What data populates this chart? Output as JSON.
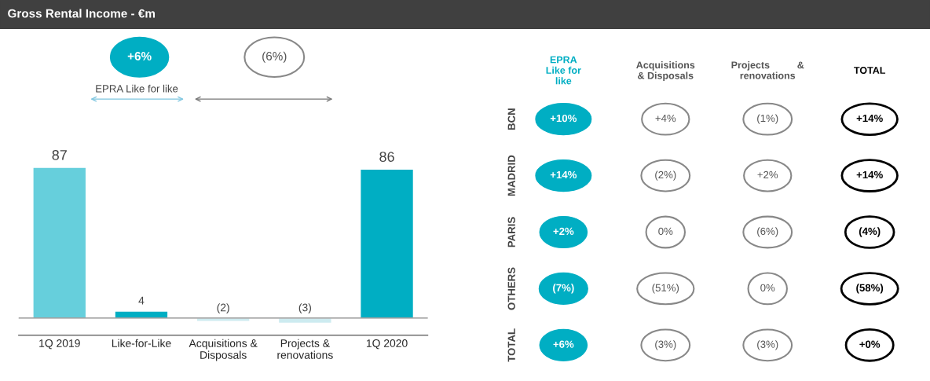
{
  "chart_data": [
    {
      "type": "bar",
      "title": "Gross Rental Income - €m",
      "categories": [
        "1Q 2019",
        "Like-for-Like",
        "Acquisitions &\nDisposals",
        "Projects &\nrenovations",
        "1Q 2020"
      ],
      "values": [
        87,
        4,
        -2,
        -3,
        86
      ],
      "colors": [
        "#66cfdc",
        "#00aec3",
        "#cdebf0",
        "#cdebf0",
        "#00aec3"
      ],
      "value_labels": [
        "87",
        "4",
        "(2)",
        "(3)",
        "86"
      ],
      "annotations": [
        "+6%",
        "(6%)",
        "EPRA Like for like"
      ]
    },
    {
      "type": "other",
      "categories": [
        "EPRA\nLike for\nlike",
        "Acquisitions\n& Disposals",
        "Projects          &\nrenovations",
        "TOTAL"
      ],
      "y_categories": [
        "BCN",
        "MADRID",
        "PARIS",
        "OTHERS",
        "TOTAL"
      ],
      "cell_labels": [
        [
          "+10%",
          "+4%",
          "(1%)",
          "+14%"
        ],
        [
          "+14%",
          "(2%)",
          "+2%",
          "+14%"
        ],
        [
          "+2%",
          "0%",
          "(6%)",
          "(4%)"
        ],
        [
          "(7%)",
          "(51%)",
          "0%",
          "(58%)"
        ],
        [
          "+6%",
          "(3%)",
          "(3%)",
          "+0%"
        ]
      ]
    }
  ]
}
